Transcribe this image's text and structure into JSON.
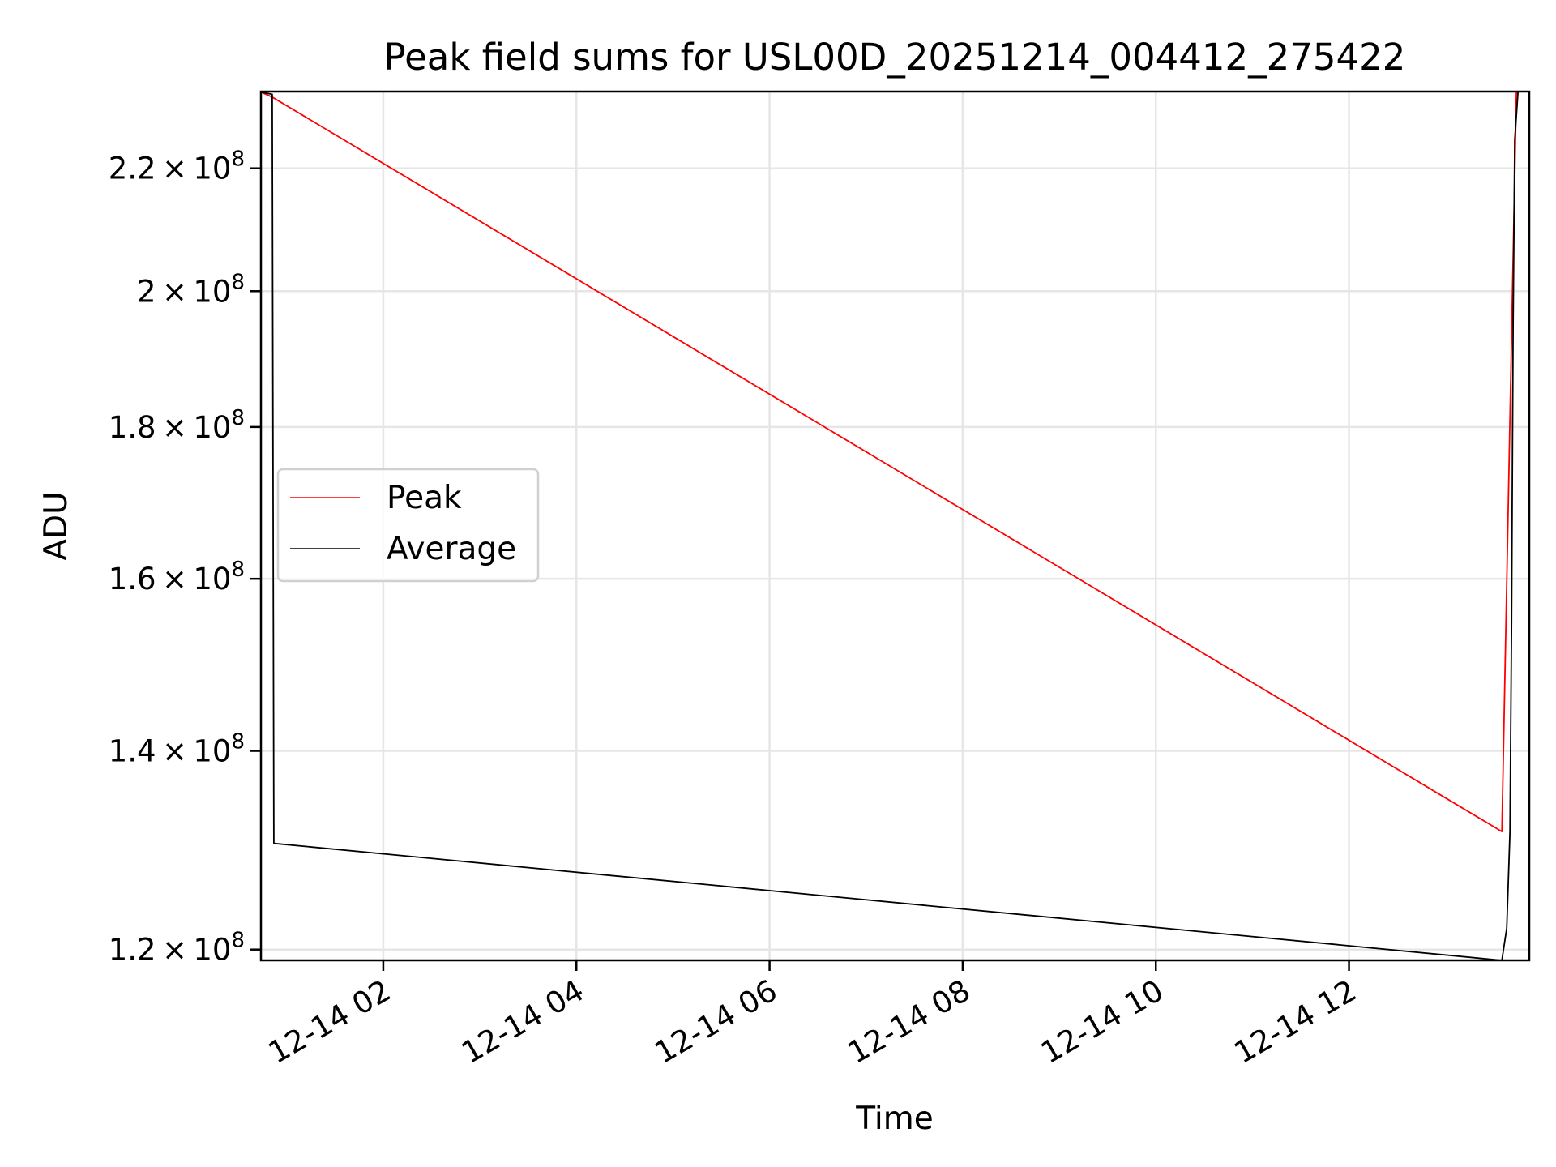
{
  "chart_data": {
    "type": "line",
    "title": "Peak field sums for USL00D_20251214_004412_275422",
    "xlabel": "Time",
    "ylabel": "ADU",
    "y_scale": "log",
    "xlim": [
      "2025-12-14T00:44",
      "2025-12-14T13:52"
    ],
    "ylim": [
      119000000,
      233500000
    ],
    "x_ticks": [
      "2025-12-14T02:00",
      "2025-12-14T04:00",
      "2025-12-14T06:00",
      "2025-12-14T08:00",
      "2025-12-14T10:00",
      "2025-12-14T12:00"
    ],
    "x_tick_labels": [
      "12-14 02",
      "12-14 04",
      "12-14 06",
      "12-14 08",
      "12-14 10",
      "12-14 12"
    ],
    "y_ticks": [
      120000000,
      140000000,
      160000000,
      180000000,
      200000000,
      220000000
    ],
    "y_tick_labels": [
      {
        "mantissa": "1.2",
        "exp": "8"
      },
      {
        "mantissa": "1.4",
        "exp": "8"
      },
      {
        "mantissa": "1.6",
        "exp": "8"
      },
      {
        "mantissa": "1.8",
        "exp": "8"
      },
      {
        "mantissa": "2",
        "exp": "8"
      },
      {
        "mantissa": "2.2",
        "exp": "8"
      }
    ],
    "grid": true,
    "legend_position": "center-left",
    "series": [
      {
        "name": "Peak",
        "color": "#ff0000",
        "points": [
          [
            "2025-12-14T00:44",
            233400000
          ],
          [
            "2025-12-14T00:51",
            232500000
          ],
          [
            "2025-12-14T13:35",
            131500000
          ],
          [
            "2025-12-14T13:44",
            233400000
          ]
        ]
      },
      {
        "name": "Average",
        "color": "#000000",
        "points": [
          [
            "2025-12-14T00:44",
            233400000
          ],
          [
            "2025-12-14T00:51",
            233000000
          ],
          [
            "2025-12-14T00:52",
            130300000
          ],
          [
            "2025-12-14T13:35",
            119000000
          ],
          [
            "2025-12-14T13:38",
            122000000
          ],
          [
            "2025-12-14T13:40",
            131500000
          ],
          [
            "2025-12-14T13:41",
            155000000
          ],
          [
            "2025-12-14T13:42",
            195000000
          ],
          [
            "2025-12-14T13:43",
            225000000
          ],
          [
            "2025-12-14T13:45",
            233400000
          ]
        ]
      }
    ]
  }
}
